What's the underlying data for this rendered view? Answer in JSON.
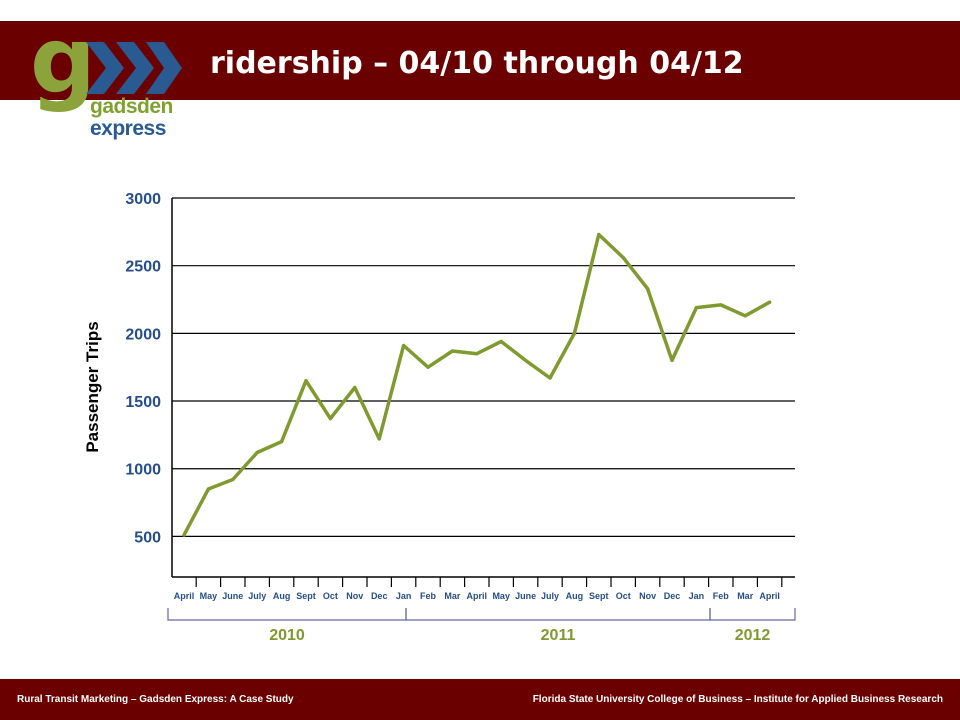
{
  "slide": {
    "title": "ridership – 04/10 through 04/12"
  },
  "logo": {
    "letter": "g",
    "word1": "gadsden",
    "word2": "express"
  },
  "footer": {
    "left": "Rural Transit Marketing – Gadsden Express: A Case Study",
    "right": "Florida State University College of Business – Institute for Applied Business Research"
  },
  "colors": {
    "header_bg": "#6b0000",
    "line": "#7f9a2e",
    "axis_text": "#254e8a",
    "year_text": "#7f9a2e",
    "bracket": "#6a64a8",
    "logo_green": "#8ba33a",
    "logo_blue": "#2a5a92"
  },
  "chart_data": {
    "type": "line",
    "title": "",
    "xlabel": "",
    "ylabel": "Passenger Trips",
    "ylim": [
      200,
      3000
    ],
    "yticks": [
      500,
      1000,
      1500,
      2000,
      2500,
      3000
    ],
    "grid": true,
    "categories": [
      "April",
      "May",
      "June",
      "July",
      "Aug",
      "Sept",
      "Oct",
      "Nov",
      "Dec",
      "Jan",
      "Feb",
      "Mar",
      "April",
      "May",
      "June",
      "July",
      "Aug",
      "Sept",
      "Oct",
      "Nov",
      "Dec",
      "Jan",
      "Feb",
      "Mar",
      "April"
    ],
    "series": [
      {
        "values": [
          510,
          850,
          920,
          1120,
          1200,
          1650,
          1370,
          1600,
          1220,
          1910,
          1750,
          1870,
          1850,
          1940,
          1800,
          1670,
          2000,
          2730,
          2560,
          2330,
          1800,
          2190,
          2210,
          2130,
          2230
        ]
      }
    ],
    "year_groups": [
      {
        "label": "2010",
        "start": 0,
        "end": 8
      },
      {
        "label": "2011",
        "start": 9,
        "end": 20
      },
      {
        "label": "2012",
        "start": 21,
        "end": 24
      }
    ]
  }
}
